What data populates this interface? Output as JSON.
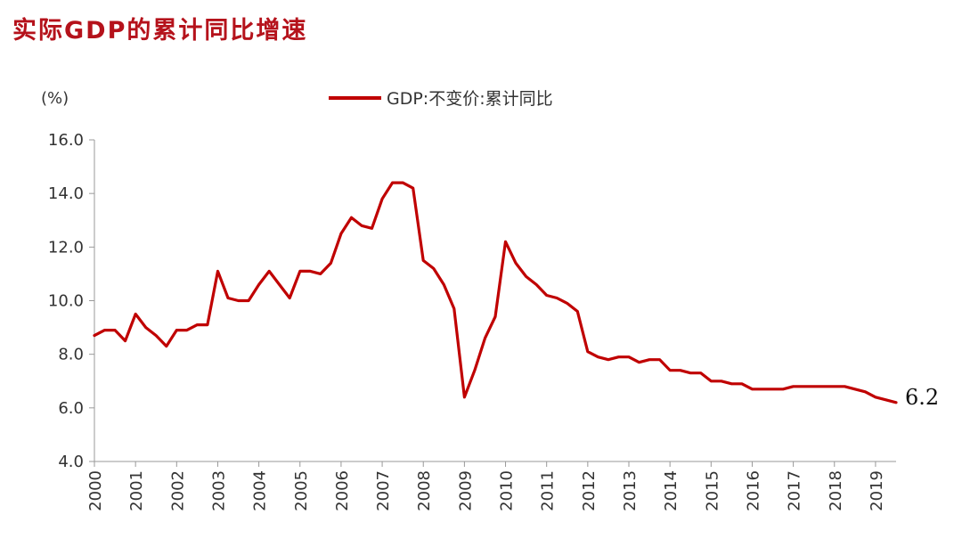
{
  "title": "实际GDP的累计同比增速",
  "colors": {
    "title": "#b5121b",
    "series": "#c00000",
    "axis": "#999999",
    "text": "#333333"
  },
  "chart_data": {
    "type": "line",
    "ylabel": "(%)",
    "ylim": [
      4.0,
      16.0
    ],
    "yticks": [
      "4.0",
      "6.0",
      "8.0",
      "10.0",
      "12.0",
      "14.0",
      "16.0"
    ],
    "xlim": [
      2000.0,
      2019.5
    ],
    "xticks": [
      "2000",
      "2001",
      "2002",
      "2003",
      "2004",
      "2005",
      "2006",
      "2007",
      "2008",
      "2009",
      "2010",
      "2011",
      "2012",
      "2013",
      "2014",
      "2015",
      "2016",
      "2017",
      "2018",
      "2019"
    ],
    "grid": false,
    "legend_position": "top-center",
    "series": [
      {
        "name": "GDP:不变价:累计同比",
        "color": "#c00000",
        "x": [
          2000.0,
          2000.25,
          2000.5,
          2000.75,
          2001.0,
          2001.25,
          2001.5,
          2001.75,
          2002.0,
          2002.25,
          2002.5,
          2002.75,
          2003.0,
          2003.25,
          2003.5,
          2003.75,
          2004.0,
          2004.25,
          2004.5,
          2004.75,
          2005.0,
          2005.25,
          2005.5,
          2005.75,
          2006.0,
          2006.25,
          2006.5,
          2006.75,
          2007.0,
          2007.25,
          2007.5,
          2007.75,
          2008.0,
          2008.25,
          2008.5,
          2008.75,
          2009.0,
          2009.25,
          2009.5,
          2009.75,
          2010.0,
          2010.25,
          2010.5,
          2010.75,
          2011.0,
          2011.25,
          2011.5,
          2011.75,
          2012.0,
          2012.25,
          2012.5,
          2012.75,
          2013.0,
          2013.25,
          2013.5,
          2013.75,
          2014.0,
          2014.25,
          2014.5,
          2014.75,
          2015.0,
          2015.25,
          2015.5,
          2015.75,
          2016.0,
          2016.25,
          2016.5,
          2016.75,
          2017.0,
          2017.25,
          2017.5,
          2017.75,
          2018.0,
          2018.25,
          2018.5,
          2018.75,
          2019.0,
          2019.25,
          2019.5
        ],
        "values": [
          8.7,
          8.9,
          8.9,
          8.5,
          9.5,
          9.0,
          8.7,
          8.3,
          8.9,
          8.9,
          9.1,
          9.1,
          11.1,
          10.1,
          10.0,
          10.0,
          10.6,
          11.1,
          10.6,
          10.1,
          11.1,
          11.1,
          11.0,
          11.4,
          12.5,
          13.1,
          12.8,
          12.7,
          13.8,
          14.4,
          14.4,
          14.2,
          11.5,
          11.2,
          10.6,
          9.7,
          6.4,
          7.4,
          8.6,
          9.4,
          12.2,
          11.4,
          10.9,
          10.6,
          10.2,
          10.1,
          9.9,
          9.6,
          8.1,
          7.9,
          7.8,
          7.9,
          7.9,
          7.7,
          7.8,
          7.8,
          7.4,
          7.4,
          7.3,
          7.3,
          7.0,
          7.0,
          6.9,
          6.9,
          6.7,
          6.7,
          6.7,
          6.7,
          6.8,
          6.8,
          6.8,
          6.8,
          6.8,
          6.8,
          6.7,
          6.6,
          6.4,
          6.3,
          6.2
        ]
      }
    ],
    "annotations": [
      {
        "text": "6.2"
      }
    ]
  }
}
